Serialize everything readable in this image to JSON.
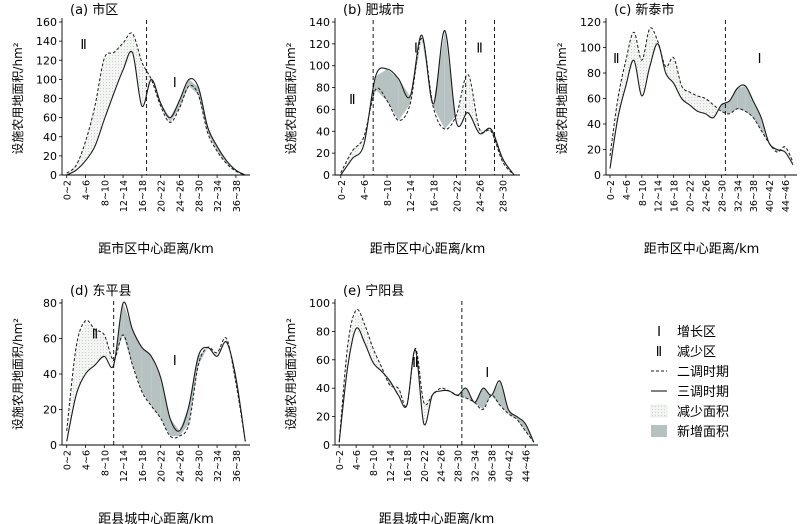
{
  "chart_data": [
    {
      "type": "line",
      "title": "(a) 市区",
      "ylabel": "设施农用地面积/hm²",
      "xlabel": "距市区中心距离/km",
      "categories": [
        "0~2",
        "2~4",
        "4~6",
        "6~8",
        "8~10",
        "10~12",
        "12~14",
        "14~16",
        "16~18",
        "18~20",
        "20~22",
        "22~24",
        "24~26",
        "26~28",
        "28~30",
        "30~32",
        "32~34",
        "34~36",
        "36~38",
        "38~40"
      ],
      "tick_labels": [
        "0~2",
        "4~6",
        "8~10",
        "12~14",
        "16~18",
        "20~22",
        "24~26",
        "28~30",
        "32~34",
        "36~38"
      ],
      "ylim": [
        0,
        160
      ],
      "yticks": [
        0,
        20,
        40,
        60,
        80,
        100,
        120,
        140,
        160
      ],
      "divider_index": 8.5,
      "zone_labels": [
        {
          "text": "Ⅱ",
          "at": 1.8,
          "y": 132
        },
        {
          "text": "Ⅰ",
          "at": 11.5,
          "y": 92
        }
      ],
      "series": [
        {
          "name": "二调时期",
          "values": [
            2,
            10,
            35,
            72,
            122,
            128,
            138,
            148,
            118,
            100,
            72,
            55,
            70,
            93,
            84,
            44,
            25,
            12,
            4,
            0
          ]
        },
        {
          "name": "三调时期",
          "values": [
            0,
            5,
            15,
            30,
            58,
            85,
            110,
            128,
            72,
            100,
            75,
            60,
            78,
            100,
            92,
            50,
            30,
            15,
            5,
            0
          ]
        }
      ]
    },
    {
      "type": "line",
      "title": "(b) 肥城市",
      "ylabel": "设施农用地面积/hm²",
      "xlabel": "距市区中心距离/km",
      "categories": [
        "0~2",
        "2~4",
        "4~6",
        "6~8",
        "8~10",
        "10~12",
        "12~14",
        "14~16",
        "16~18",
        "18~20",
        "20~22",
        "22~24",
        "24~26",
        "26~28",
        "28~30",
        "30~32"
      ],
      "tick_labels": [
        "0~2",
        "4~6",
        "8~10",
        "12~14",
        "16~18",
        "20~22",
        "24~26",
        "28~30"
      ],
      "ylim": [
        0,
        140
      ],
      "yticks": [
        0,
        20,
        40,
        60,
        80,
        100,
        120,
        140
      ],
      "dividers": [
        2.8,
        10.8,
        13.3
      ],
      "zone_labels": [
        {
          "text": "Ⅱ",
          "at": 1.0,
          "y": 65
        },
        {
          "text": "Ⅰ",
          "at": 6.5,
          "y": 112
        },
        {
          "text": "Ⅱ",
          "at": 12.0,
          "y": 112
        }
      ],
      "series": [
        {
          "name": "二调时期",
          "values": [
            2,
            22,
            35,
            78,
            68,
            50,
            65,
            125,
            62,
            42,
            55,
            92,
            42,
            40,
            12,
            0
          ]
        },
        {
          "name": "三调时期",
          "values": [
            0,
            15,
            28,
            90,
            97,
            88,
            72,
            128,
            65,
            132,
            48,
            57,
            38,
            42,
            15,
            0
          ]
        }
      ]
    },
    {
      "type": "line",
      "title": "(c) 新泰市",
      "ylabel": "设施农用地面积/hm²",
      "xlabel": "距市区中心距离/km",
      "categories": [
        "0~2",
        "2~4",
        "4~6",
        "6~8",
        "8~10",
        "10~12",
        "12~14",
        "14~16",
        "16~18",
        "18~20",
        "20~22",
        "22~24",
        "24~26",
        "26~28",
        "28~30",
        "30~32",
        "32~34",
        "34~36",
        "36~38",
        "38~40",
        "40~42",
        "42~44",
        "44~46",
        "46~48"
      ],
      "tick_labels": [
        "0~2",
        "4~6",
        "8~10",
        "12~14",
        "16~18",
        "20~22",
        "24~26",
        "28~30",
        "32~34",
        "36~38",
        "40~42",
        "44~46"
      ],
      "ylim": [
        0,
        120
      ],
      "yticks": [
        0,
        20,
        40,
        60,
        80,
        100,
        120
      ],
      "divider_index": 14.5,
      "zone_labels": [
        {
          "text": "Ⅱ",
          "at": 0.8,
          "y": 88
        },
        {
          "text": "Ⅰ",
          "at": 18.8,
          "y": 88
        }
      ],
      "series": [
        {
          "name": "二调时期",
          "values": [
            15,
            60,
            90,
            112,
            90,
            115,
            105,
            85,
            92,
            70,
            65,
            62,
            60,
            55,
            50,
            48,
            52,
            50,
            45,
            35,
            25,
            18,
            22,
            10
          ]
        },
        {
          "name": "三调时期",
          "values": [
            5,
            45,
            70,
            90,
            62,
            85,
            103,
            80,
            72,
            60,
            55,
            50,
            48,
            45,
            55,
            58,
            68,
            70,
            58,
            45,
            25,
            20,
            18,
            8
          ]
        }
      ]
    },
    {
      "type": "line",
      "title": "(d) 东平县",
      "ylabel": "设施农用地面积/hm²",
      "xlabel": "距县城中心距离/km",
      "categories": [
        "0~2",
        "2~4",
        "4~6",
        "6~8",
        "8~10",
        "10~12",
        "12~14",
        "14~16",
        "16~18",
        "18~20",
        "20~22",
        "22~24",
        "24~26",
        "26~28",
        "28~30",
        "30~32",
        "32~34",
        "34~36",
        "36~38",
        "38~40"
      ],
      "tick_labels": [
        "0~2",
        "4~6",
        "8~10",
        "12~14",
        "16~18",
        "20~22",
        "24~26",
        "28~30",
        "32~34",
        "36~38"
      ],
      "ylim": [
        0,
        80
      ],
      "yticks": [
        0,
        20,
        40,
        60,
        80
      ],
      "divider_index": 5.0,
      "zone_labels": [
        {
          "text": "Ⅱ",
          "at": 3.0,
          "y": 60
        },
        {
          "text": "Ⅰ",
          "at": 11.5,
          "y": 45
        }
      ],
      "series": [
        {
          "name": "二调时期",
          "values": [
            8,
            55,
            70,
            65,
            62,
            48,
            62,
            45,
            30,
            22,
            15,
            5,
            5,
            12,
            45,
            55,
            52,
            60,
            35,
            2
          ]
        },
        {
          "name": "三调时期",
          "values": [
            2,
            28,
            40,
            45,
            50,
            45,
            80,
            65,
            55,
            50,
            38,
            15,
            8,
            22,
            50,
            55,
            50,
            58,
            38,
            2
          ]
        }
      ]
    },
    {
      "type": "line",
      "title": "(e) 宁阳县",
      "ylabel": "设施农用地面积/hm²",
      "xlabel": "距县城中心距离/km",
      "categories": [
        "0~2",
        "2~4",
        "4~6",
        "6~8",
        "8~10",
        "10~12",
        "12~14",
        "14~16",
        "16~18",
        "18~20",
        "20~22",
        "22~24",
        "24~26",
        "26~28",
        "28~30",
        "30~32",
        "32~34",
        "34~36",
        "36~38",
        "38~40",
        "40~42",
        "42~44",
        "44~46",
        "46~48"
      ],
      "tick_labels": [
        "0~2",
        "4~6",
        "8~10",
        "12~14",
        "16~18",
        "20~22",
        "24~26",
        "28~30",
        "32~34",
        "36~38",
        "40~42",
        "44~46"
      ],
      "ylim": [
        0,
        100
      ],
      "yticks": [
        0,
        20,
        40,
        60,
        80,
        100
      ],
      "divider_index": 14.5,
      "zone_labels": [
        {
          "text": "Ⅱ",
          "at": 9.0,
          "y": 55
        },
        {
          "text": "Ⅰ",
          "at": 17.5,
          "y": 48
        }
      ],
      "series": [
        {
          "name": "二调时期",
          "values": [
            2,
            70,
            95,
            85,
            68,
            55,
            42,
            40,
            28,
            68,
            30,
            35,
            40,
            38,
            35,
            33,
            30,
            25,
            35,
            28,
            22,
            18,
            10,
            2
          ]
        },
        {
          "name": "三调时期",
          "values": [
            2,
            55,
            82,
            72,
            58,
            52,
            45,
            35,
            28,
            67,
            15,
            35,
            38,
            38,
            35,
            40,
            30,
            40,
            35,
            45,
            25,
            20,
            15,
            2
          ]
        }
      ]
    }
  ],
  "legend": {
    "items": [
      {
        "key": "zone1",
        "symbol": "Ⅰ",
        "label": "增长区"
      },
      {
        "key": "zone2",
        "symbol": "Ⅱ",
        "label": "减少区"
      },
      {
        "key": "ertiao",
        "symbol": "dashed",
        "label": "二调时期"
      },
      {
        "key": "santiao",
        "symbol": "solid",
        "label": "三调时期"
      },
      {
        "key": "decrease",
        "symbol": "dotted-fill",
        "label": "减少面积"
      },
      {
        "key": "increase",
        "symbol": "gray-fill",
        "label": "新增面积"
      }
    ]
  },
  "colors": {
    "line": "#1a1a1a",
    "increase_fill": "#b6c2c2",
    "decrease_fill": "#eef0ee"
  }
}
